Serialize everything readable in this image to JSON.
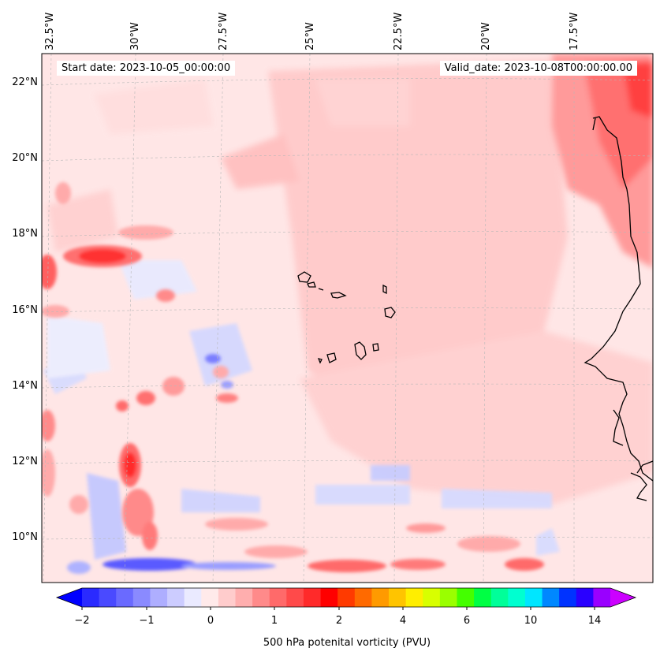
{
  "header": {
    "start_date": "Start date: 2023-10-05_00:00:00",
    "valid_date": "Valid_date: 2023-10-08T00:00:00.00"
  },
  "map": {
    "longitude_labels": [
      "32.5°W",
      "30°W",
      "27.5°W",
      "25°W",
      "22.5°W",
      "20°W",
      "17.5°W"
    ],
    "latitude_labels": [
      "22°N",
      "20°N",
      "18°N",
      "16°N",
      "14°N",
      "12°N",
      "10°N"
    ],
    "colors": {
      "background_pv": "#ffdede",
      "light_pink": "#ffc8c8",
      "medium_pink": "#ffaaaa",
      "strong_red": "#ff5a5a",
      "deep_red": "#ff2a2a",
      "light_blue": "#e8eaff",
      "medium_blue": "#b4b8ff",
      "strong_blue": "#6a70ff",
      "coastline": "#000000"
    }
  },
  "colorbar": {
    "tick_labels": [
      "−2",
      "−1",
      "0",
      "1",
      "2",
      "4",
      "6",
      "10",
      "14"
    ],
    "label": "500 hPa potenital vorticity (PVU)",
    "colors": [
      "#0000ff",
      "#2a2aff",
      "#4a4aff",
      "#6a6aff",
      "#8a8aff",
      "#aeaeff",
      "#ccccff",
      "#eaeaff",
      "#ffeaea",
      "#ffcccc",
      "#ffaeae",
      "#ff8a8a",
      "#ff6a6a",
      "#ff4a4a",
      "#ff2a2a",
      "#ff0000",
      "#ff3a00",
      "#ff6a00",
      "#ff9a00",
      "#ffc400",
      "#ffee00",
      "#d8ff00",
      "#9aff00",
      "#44ff00",
      "#00ff44",
      "#00ff99",
      "#00ffd0",
      "#00e6ff",
      "#0088ff",
      "#0033ff",
      "#2a00ff",
      "#9900ff",
      "#cc00ff"
    ]
  }
}
